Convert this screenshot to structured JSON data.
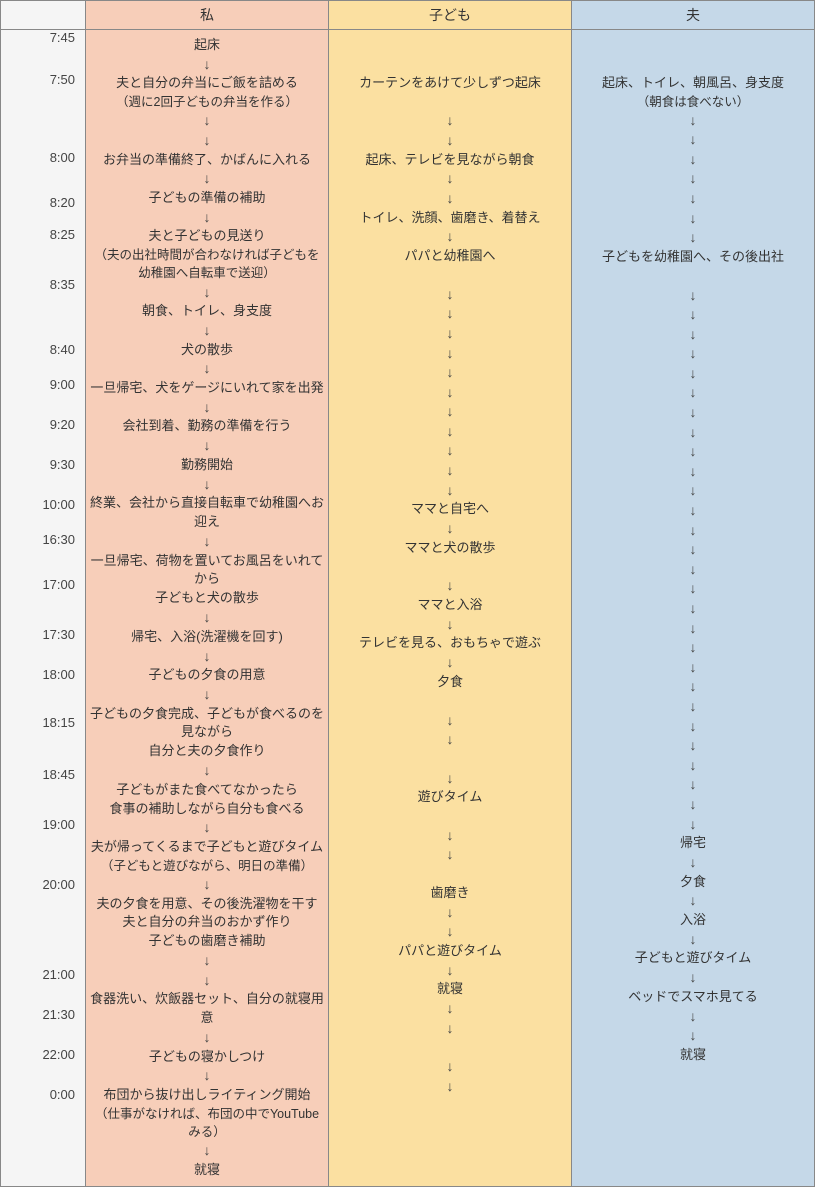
{
  "headers": {
    "col1": "私",
    "col2": "子ども",
    "col3": "夫"
  },
  "colors": {
    "col1_bg": "#f7ceb9",
    "col2_bg": "#fbe0a1",
    "col3_bg": "#c5d8e8",
    "time_bg": "#f5f5f5",
    "border": "#888888"
  },
  "times": [
    "7:45",
    "7:50",
    "8:00",
    "8:20",
    "8:25",
    "8:35",
    "8:40",
    "9:00",
    "9:20",
    "9:30",
    "10:00",
    "16:30",
    "17:00",
    "17:30",
    "18:00",
    "18:15",
    "18:45",
    "19:00",
    "20:00",
    "21:00",
    "21:30",
    "22:00",
    "0:00"
  ],
  "time_offsets": [
    8,
    50,
    128,
    173,
    205,
    255,
    320,
    355,
    395,
    435,
    475,
    510,
    555,
    605,
    645,
    693,
    745,
    795,
    855,
    945,
    985,
    1025,
    1065
  ],
  "col1": [
    {
      "t": "起床"
    },
    {
      "a": 1
    },
    {
      "t": "夫と自分の弁当にご飯を詰める"
    },
    {
      "t": "（週に2回子どもの弁当を作る）",
      "p": 1
    },
    {
      "a": 1
    },
    {
      "a": 1
    },
    {
      "t": "お弁当の準備終了、かばんに入れる"
    },
    {
      "a": 1
    },
    {
      "t": "子どもの準備の補助"
    },
    {
      "a": 1
    },
    {
      "t": "夫と子どもの見送り"
    },
    {
      "t": "（夫の出社時間が合わなければ子どもを",
      "p": 1
    },
    {
      "t": "幼稚園へ自転車で送迎）",
      "p": 1
    },
    {
      "a": 1
    },
    {
      "t": "朝食、トイレ、身支度"
    },
    {
      "a": 1
    },
    {
      "t": "犬の散歩"
    },
    {
      "a": 1
    },
    {
      "t": "一旦帰宅、犬をゲージにいれて家を出発"
    },
    {
      "a": 1
    },
    {
      "t": "会社到着、勤務の準備を行う"
    },
    {
      "a": 1
    },
    {
      "t": "勤務開始"
    },
    {
      "a": 1
    },
    {
      "t": "終業、会社から直接自転車で幼稚園へお迎え"
    },
    {
      "a": 1
    },
    {
      "t": "一旦帰宅、荷物を置いてお風呂をいれてから"
    },
    {
      "t": "子どもと犬の散歩"
    },
    {
      "a": 1
    },
    {
      "t": "帰宅、入浴(洗濯機を回す)"
    },
    {
      "a": 1
    },
    {
      "t": "子どもの夕食の用意"
    },
    {
      "a": 1
    },
    {
      "t": "子どもの夕食完成、子どもが食べるのを見ながら"
    },
    {
      "t": "自分と夫の夕食作り"
    },
    {
      "a": 1
    },
    {
      "t": "子どもがまた食べてなかったら"
    },
    {
      "t": "食事の補助しながら自分も食べる"
    },
    {
      "a": 1
    },
    {
      "t": "夫が帰ってくるまで子どもと遊びタイム"
    },
    {
      "t": "（子どもと遊びながら、明日の準備）",
      "p": 1
    },
    {
      "a": 1
    },
    {
      "t": "夫の夕食を用意、その後洗濯物を干す"
    },
    {
      "t": "夫と自分の弁当のおかず作り"
    },
    {
      "t": "子どもの歯磨き補助"
    },
    {
      "a": 1
    },
    {
      "a": 1
    },
    {
      "t": "食器洗い、炊飯器セット、自分の就寝用意"
    },
    {
      "a": 1
    },
    {
      "t": "子どもの寝かしつけ"
    },
    {
      "a": 1
    },
    {
      "t": "布団から抜け出しライティング開始"
    },
    {
      "t": "（仕事がなければ、布団の中でYouTubeみる）",
      "p": 1
    },
    {
      "a": 1
    },
    {
      "t": "就寝"
    }
  ],
  "col2": [
    {
      "t": " "
    },
    {
      "t": " "
    },
    {
      "t": "カーテンをあけて少しずつ起床"
    },
    {
      "t": " "
    },
    {
      "a": 1
    },
    {
      "a": 1
    },
    {
      "t": "起床、テレビを見ながら朝食"
    },
    {
      "a": 1
    },
    {
      "a": 1
    },
    {
      "t": "トイレ、洗顔、歯磨き、着替え"
    },
    {
      "a": 1
    },
    {
      "t": "パパと幼稚園へ"
    },
    {
      "t": " "
    },
    {
      "a": 1
    },
    {
      "a": 1
    },
    {
      "a": 1
    },
    {
      "a": 1
    },
    {
      "a": 1
    },
    {
      "a": 1
    },
    {
      "a": 1
    },
    {
      "a": 1
    },
    {
      "a": 1
    },
    {
      "a": 1
    },
    {
      "a": 1
    },
    {
      "t": "ママと自宅へ"
    },
    {
      "a": 1
    },
    {
      "t": "ママと犬の散歩"
    },
    {
      "t": " "
    },
    {
      "a": 1
    },
    {
      "t": "ママと入浴"
    },
    {
      "a": 1
    },
    {
      "t": "テレビを見る、おもちゃで遊ぶ"
    },
    {
      "a": 1
    },
    {
      "t": "夕食"
    },
    {
      "t": " "
    },
    {
      "a": 1
    },
    {
      "a": 1
    },
    {
      "t": " "
    },
    {
      "a": 1
    },
    {
      "t": "遊びタイム"
    },
    {
      "t": " "
    },
    {
      "a": 1
    },
    {
      "a": 1
    },
    {
      "t": " "
    },
    {
      "t": "歯磨き"
    },
    {
      "a": 1
    },
    {
      "a": 1
    },
    {
      "t": "パパと遊びタイム"
    },
    {
      "a": 1
    },
    {
      "t": "就寝"
    },
    {
      "a": 1
    },
    {
      "a": 1
    },
    {
      "t": " "
    },
    {
      "a": 1
    },
    {
      "a": 1
    }
  ],
  "col3": [
    {
      "t": " "
    },
    {
      "t": " "
    },
    {
      "t": "起床、トイレ、朝風呂、身支度"
    },
    {
      "t": "（朝食は食べない）",
      "p": 1
    },
    {
      "a": 1
    },
    {
      "a": 1
    },
    {
      "a": 1
    },
    {
      "a": 1
    },
    {
      "a": 1
    },
    {
      "a": 1
    },
    {
      "a": 1
    },
    {
      "t": "子どもを幼稚園へ、その後出社"
    },
    {
      "t": " "
    },
    {
      "a": 1
    },
    {
      "a": 1
    },
    {
      "a": 1
    },
    {
      "a": 1
    },
    {
      "a": 1
    },
    {
      "a": 1
    },
    {
      "a": 1
    },
    {
      "a": 1
    },
    {
      "a": 1
    },
    {
      "a": 1
    },
    {
      "a": 1
    },
    {
      "a": 1
    },
    {
      "a": 1
    },
    {
      "a": 1
    },
    {
      "a": 1
    },
    {
      "a": 1
    },
    {
      "a": 1
    },
    {
      "a": 1
    },
    {
      "a": 1
    },
    {
      "a": 1
    },
    {
      "a": 1
    },
    {
      "a": 1
    },
    {
      "a": 1
    },
    {
      "a": 1
    },
    {
      "a": 1
    },
    {
      "a": 1
    },
    {
      "a": 1
    },
    {
      "a": 1
    },
    {
      "t": "帰宅"
    },
    {
      "a": 1
    },
    {
      "t": "夕食"
    },
    {
      "a": 1
    },
    {
      "t": "入浴"
    },
    {
      "a": 1
    },
    {
      "t": "子どもと遊びタイム"
    },
    {
      "a": 1
    },
    {
      "t": "ベッドでスマホ見てる"
    },
    {
      "a": 1
    },
    {
      "a": 1
    },
    {
      "t": "就寝"
    },
    {
      "t": " "
    },
    {
      "t": " "
    }
  ]
}
